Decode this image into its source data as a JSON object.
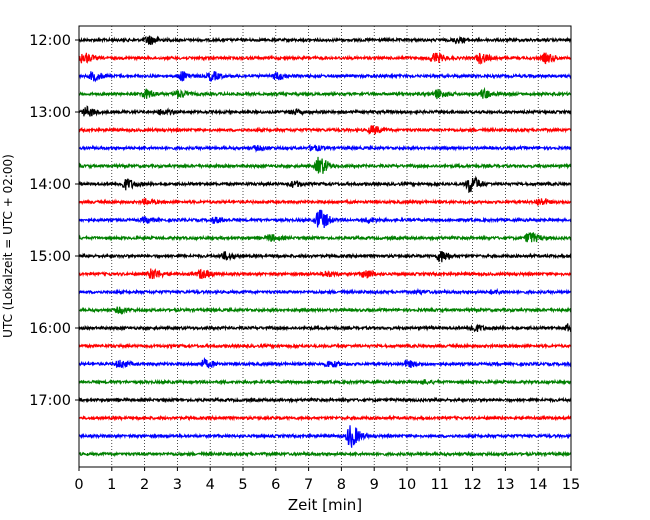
{
  "chart_data": {
    "type": "line",
    "xlabel": "Zeit  [min]",
    "ylabel": "UTC (Lokalzeit = UTC + 02:00)",
    "xlim": [
      0,
      15
    ],
    "x_ticks": [
      "0",
      "1",
      "2",
      "3",
      "4",
      "5",
      "6",
      "7",
      "8",
      "9",
      "10",
      "11",
      "12",
      "13",
      "14",
      "15"
    ],
    "y_tick_labels": [
      "12:00",
      "13:00",
      "14:00",
      "15:00",
      "16:00",
      "17:00"
    ],
    "line_interval_minutes": 15,
    "grid": "vertical dotted at each minute",
    "series_colors": [
      "#000000",
      "#ff0000",
      "#0000ff",
      "#008000"
    ],
    "traces": [
      {
        "start": "12:00",
        "color": "#000000",
        "events": [
          {
            "t": 2.1,
            "amp": 1.0
          },
          {
            "t": 11.5,
            "amp": 0.6
          }
        ]
      },
      {
        "start": "12:15",
        "color": "#ff0000",
        "events": [
          {
            "t": 0.1,
            "amp": 1.2
          },
          {
            "t": 10.8,
            "amp": 1.2
          },
          {
            "t": 12.2,
            "amp": 1.1
          },
          {
            "t": 14.2,
            "amp": 1.0
          }
        ]
      },
      {
        "start": "12:30",
        "color": "#0000ff",
        "events": [
          {
            "t": 0.4,
            "amp": 1.0
          },
          {
            "t": 3.1,
            "amp": 1.0
          },
          {
            "t": 4.0,
            "amp": 1.0
          },
          {
            "t": 6.0,
            "amp": 0.8
          }
        ]
      },
      {
        "start": "12:45",
        "color": "#008000",
        "events": [
          {
            "t": 2.0,
            "amp": 1.0
          },
          {
            "t": 3.0,
            "amp": 0.8
          },
          {
            "t": 10.9,
            "amp": 1.0
          },
          {
            "t": 12.3,
            "amp": 1.0
          }
        ]
      },
      {
        "start": "13:00",
        "color": "#000000",
        "events": [
          {
            "t": 0.2,
            "amp": 1.1
          },
          {
            "t": 2.5,
            "amp": 0.6
          },
          {
            "t": 6.5,
            "amp": 0.5
          }
        ]
      },
      {
        "start": "13:15",
        "color": "#ff0000",
        "events": [
          {
            "t": 8.9,
            "amp": 0.9
          }
        ]
      },
      {
        "start": "13:30",
        "color": "#0000ff",
        "events": [
          {
            "t": 5.4,
            "amp": 0.4
          },
          {
            "t": 7.1,
            "amp": 0.6
          }
        ]
      },
      {
        "start": "13:45",
        "color": "#008000",
        "events": [
          {
            "t": 7.3,
            "amp": 2.0
          }
        ]
      },
      {
        "start": "14:00",
        "color": "#000000",
        "events": [
          {
            "t": 1.4,
            "amp": 1.2
          },
          {
            "t": 6.5,
            "amp": 0.6
          },
          {
            "t": 11.9,
            "amp": 2.0
          }
        ]
      },
      {
        "start": "14:15",
        "color": "#ff0000",
        "events": [
          {
            "t": 2.0,
            "amp": 0.5
          },
          {
            "t": 14.0,
            "amp": 0.8
          }
        ]
      },
      {
        "start": "14:30",
        "color": "#0000ff",
        "events": [
          {
            "t": 2.0,
            "amp": 0.6
          },
          {
            "t": 4.1,
            "amp": 0.6
          },
          {
            "t": 7.3,
            "amp": 2.4
          },
          {
            "t": 8.8,
            "amp": 0.5
          }
        ]
      },
      {
        "start": "14:45",
        "color": "#008000",
        "events": [
          {
            "t": 5.8,
            "amp": 0.7
          },
          {
            "t": 13.7,
            "amp": 1.3
          }
        ]
      },
      {
        "start": "15:00",
        "color": "#000000",
        "events": [
          {
            "t": 4.4,
            "amp": 0.8
          },
          {
            "t": 11.0,
            "amp": 1.3
          }
        ]
      },
      {
        "start": "15:15",
        "color": "#ff0000",
        "events": [
          {
            "t": 2.2,
            "amp": 1.2
          },
          {
            "t": 3.7,
            "amp": 1.0
          },
          {
            "t": 7.5,
            "amp": 0.6
          },
          {
            "t": 8.7,
            "amp": 0.9
          }
        ]
      },
      {
        "start": "15:30",
        "color": "#0000ff",
        "events": [
          {
            "t": 10.3,
            "amp": 0.3
          },
          {
            "t": 12.6,
            "amp": 0.4
          }
        ]
      },
      {
        "start": "15:45",
        "color": "#008000",
        "events": [
          {
            "t": 1.2,
            "amp": 0.6
          }
        ]
      },
      {
        "start": "16:00",
        "color": "#000000",
        "events": [
          {
            "t": 12.0,
            "amp": 0.8
          },
          {
            "t": 14.9,
            "amp": 0.9
          }
        ]
      },
      {
        "start": "16:15",
        "color": "#ff0000",
        "events": []
      },
      {
        "start": "16:30",
        "color": "#0000ff",
        "events": [
          {
            "t": 1.2,
            "amp": 0.8
          },
          {
            "t": 3.8,
            "amp": 0.9
          },
          {
            "t": 7.6,
            "amp": 0.7
          },
          {
            "t": 10.0,
            "amp": 0.7
          }
        ]
      },
      {
        "start": "16:45",
        "color": "#008000",
        "events": [
          {
            "t": 10.5,
            "amp": 0.4
          }
        ]
      },
      {
        "start": "17:00",
        "color": "#000000",
        "events": []
      },
      {
        "start": "17:15",
        "color": "#ff0000",
        "events": []
      },
      {
        "start": "17:30",
        "color": "#0000ff",
        "events": [
          {
            "t": 8.25,
            "amp": 2.6
          }
        ]
      },
      {
        "start": "17:45",
        "color": "#008000",
        "events": []
      }
    ]
  }
}
